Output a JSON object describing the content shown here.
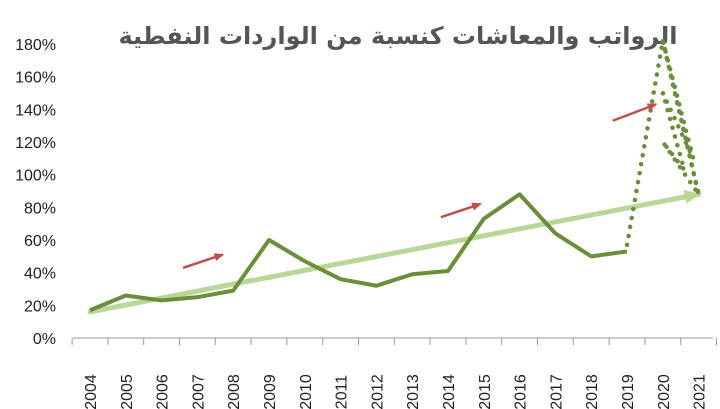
{
  "chart_data": {
    "type": "line",
    "title": "الرواتب والمعاشات كنسبة من الواردات النفطية",
    "xlabel": "",
    "ylabel": "",
    "ylim": [
      0,
      180
    ],
    "y_tick_labels": [
      "0%",
      "20%",
      "40%",
      "60%",
      "80%",
      "100%",
      "120%",
      "140%",
      "160%",
      "180%"
    ],
    "categories": [
      "2004",
      "2005",
      "2006",
      "2007",
      "2008",
      "2009",
      "2010",
      "2011",
      "2012",
      "2013",
      "2014",
      "2015",
      "2016",
      "2017",
      "2018",
      "2019",
      "2020",
      "2021"
    ],
    "series": [
      {
        "values": [
          17,
          26,
          23,
          25,
          29,
          60,
          47,
          36,
          32,
          39,
          41,
          73,
          88,
          64,
          50,
          53,
          null,
          null
        ],
        "style": "solid",
        "color": "#6B8E3A"
      },
      {
        "values": [
          null,
          null,
          null,
          null,
          null,
          null,
          null,
          null,
          null,
          null,
          null,
          null,
          null,
          null,
          null,
          57,
          182,
          88
        ],
        "extra_points": [
          [
            2019.9,
            150
          ],
          [
            2020.6,
            103
          ],
          [
            2020.15,
            120
          ],
          [
            2020.3,
            150
          ],
          [
            2020.0,
            120
          ],
          [
            2021.0,
            88
          ]
        ],
        "style": "dotted",
        "color": "#6B8E3A"
      }
    ],
    "trend_arrow": {
      "from": [
        2004,
        16
      ],
      "to": [
        2021,
        88
      ],
      "color": "#B9D898"
    },
    "annotation_arrows": [
      {
        "from": [
          2006.6,
          43
        ],
        "to": [
          2007.7,
          51
        ],
        "color": "#C0504D"
      },
      {
        "from": [
          2013.8,
          74
        ],
        "to": [
          2014.9,
          82
        ],
        "color": "#C0504D"
      },
      {
        "from": [
          2018.6,
          133
        ],
        "to": [
          2019.8,
          143
        ],
        "color": "#C0504D"
      }
    ],
    "grid": false,
    "colors": {
      "line": "#6B8E3A",
      "trend": "#B9D898",
      "arrow": "#C0504D",
      "axis": "#999999"
    }
  }
}
